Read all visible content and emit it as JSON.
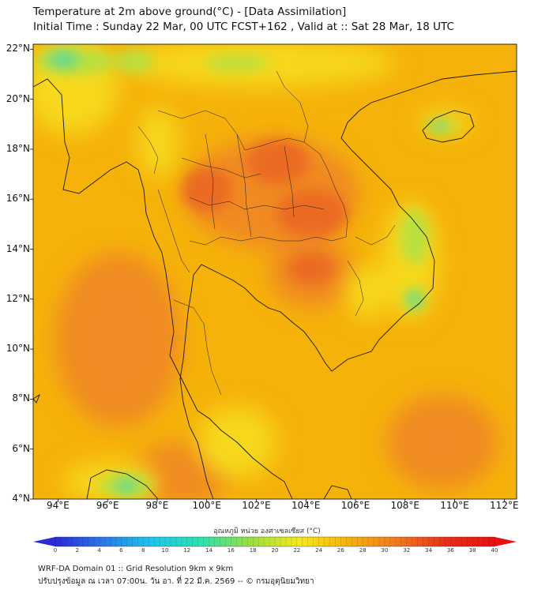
{
  "title_line1": "Temperature at 2m above ground(°C) - [Data Assimilation]",
  "title_line2": "Initial Time : Sunday 22 Mar, 00 UTC FCST+162 , Valid at :: Sat 28 Mar, 18 UTC",
  "map": {
    "lon_range": [
      93,
      112.5
    ],
    "lat_range": [
      4,
      22.2
    ],
    "lat_labels": [
      "22°N",
      "20°N",
      "18°N",
      "16°N",
      "14°N",
      "12°N",
      "10°N",
      "8°N",
      "6°N",
      "4°N"
    ],
    "lon_labels": [
      "94°E",
      "96°E",
      "98°E",
      "100°E",
      "102°E",
      "104°E",
      "106°E",
      "108°E",
      "110°E",
      "112°E"
    ],
    "field_colors": {
      "background": "#f5b20a",
      "warm": "#f08a20",
      "hot": "#eb6a22",
      "cool": "#f7d81c",
      "cold": "#b8e040",
      "coldest": "#5ed89a"
    }
  },
  "colorbar": {
    "title": "อุณหภูมิ หน่วย องศาเซลเซียส (°C)",
    "ticks": [
      "0",
      "2",
      "4",
      "6",
      "8",
      "10",
      "12",
      "14",
      "16",
      "18",
      "20",
      "22",
      "24",
      "26",
      "28",
      "30",
      "32",
      "34",
      "36",
      "38",
      "40"
    ],
    "range": [
      0,
      40
    ],
    "colors": [
      "#2a2ad8",
      "#2a7ae8",
      "#1ec8e8",
      "#30e0b0",
      "#9ae040",
      "#f5e81c",
      "#f5b20a",
      "#f07a20",
      "#e83018",
      "#e81010"
    ]
  },
  "footer_line1": "WRF-DA Domain 01 :: Grid Resolution 9km x 9km",
  "footer_line2": "ปรับปรุงข้อมูล ณ เวลา 07:00น. วัน อา. ที่ 22 มี.ค. 2569 -- © กรมอุตุนิยมวิทยา"
}
